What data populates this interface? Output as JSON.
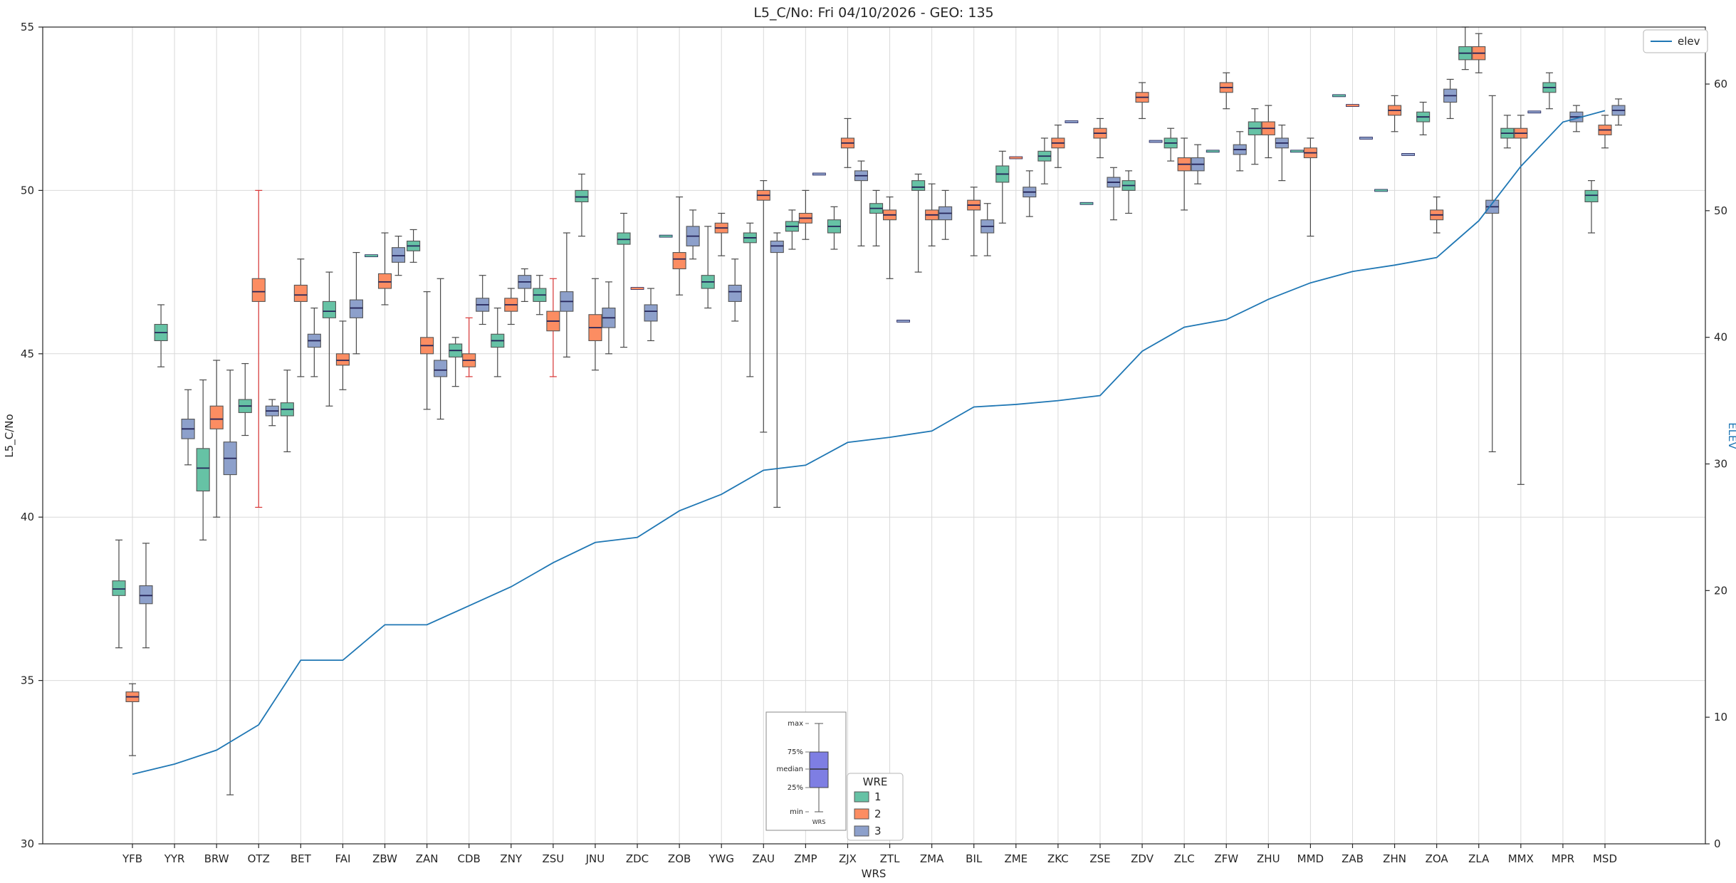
{
  "title": "L5_C/No: Fri 04/10/2026 - GEO: 135",
  "axes": {
    "x_label": "WRS",
    "y_left_label": "L5_C/No",
    "y_right_label": "ELEV",
    "y_left_ticks": [
      30,
      35,
      40,
      45,
      50,
      55
    ],
    "y_right_ticks": [
      0,
      10,
      20,
      30,
      40,
      50,
      60
    ],
    "y_left_range": [
      30,
      55
    ],
    "y_right_range": [
      0,
      64.5
    ],
    "grid": true
  },
  "legend_elev": {
    "label": "elev"
  },
  "legend_wre": {
    "title": "WRE",
    "items": [
      {
        "label": "1",
        "color": "#66c2a5"
      },
      {
        "label": "2",
        "color": "#fc8d62"
      },
      {
        "label": "3",
        "color": "#8da0cb"
      }
    ]
  },
  "inset": {
    "labels": [
      "max",
      "75%",
      "median",
      "25%",
      "min"
    ],
    "caption": "WRS",
    "box_color": "#7e7ee3"
  },
  "colors": {
    "elev_line": "#1f77b4",
    "box_edge": "#555555",
    "median": "#25255a",
    "whisker": "#4a4a4a",
    "red_whisker": "#d93636",
    "grid": "#d9d9d9",
    "spine": "#262626",
    "right_axis_text": "#1f77b4"
  },
  "chart_data": {
    "type": "boxplot+line",
    "title": "L5_C/No: Fri 04/10/2026 - GEO: 135",
    "xlabel": "WRS",
    "ylabel_left": "L5_C/No",
    "ylabel_right": "ELEV",
    "ylim_left": [
      30,
      55
    ],
    "ylim_right": [
      0,
      64.5
    ],
    "legend_position": "elev top-right, WRE bottom-center",
    "series_names": [
      "1",
      "2",
      "3"
    ],
    "categories": [
      "YFB",
      "YYR",
      "BRW",
      "OTZ",
      "BET",
      "FAI",
      "ZBW",
      "ZAN",
      "CDB",
      "ZNY",
      "ZSU",
      "JNU",
      "ZDC",
      "ZOB",
      "YWG",
      "ZAU",
      "ZMP",
      "ZJX",
      "ZTL",
      "ZMA",
      "BIL",
      "ZME",
      "ZKC",
      "ZSE",
      "ZDV",
      "ZLC",
      "ZFW",
      "ZHU",
      "MMD",
      "ZAB",
      "ZHN",
      "ZOA",
      "ZLA",
      "MMX",
      "MPR",
      "MSD"
    ],
    "elev": [
      5.5,
      6.3,
      7.4,
      9.4,
      14.5,
      14.5,
      17.3,
      17.3,
      18.8,
      20.3,
      22.2,
      23.8,
      24.2,
      26.3,
      27.6,
      29.5,
      29.9,
      31.7,
      32.1,
      32.6,
      34.5,
      34.7,
      35.0,
      35.4,
      38.9,
      40.8,
      41.4,
      43.0,
      44.3,
      45.2,
      45.7,
      46.3,
      49.2,
      53.5,
      57.0,
      57.9
    ],
    "boxes": [
      [
        {
          "s": 1,
          "lo": 36.0,
          "q1": 37.6,
          "med": 37.8,
          "q3": 38.05,
          "hi": 39.3
        },
        {
          "s": 2,
          "lo": 32.7,
          "q1": 34.35,
          "med": 34.5,
          "q3": 34.65,
          "hi": 34.9
        },
        {
          "s": 3,
          "lo": 36.0,
          "q1": 37.35,
          "med": 37.6,
          "q3": 37.9,
          "hi": 39.2
        }
      ],
      [
        {
          "s": 1,
          "lo": 44.6,
          "q1": 45.4,
          "med": 45.65,
          "q3": 45.9,
          "hi": 46.5
        },
        {
          "s": 3,
          "lo": 41.6,
          "q1": 42.4,
          "med": 42.7,
          "q3": 43.0,
          "hi": 43.9
        }
      ],
      [
        {
          "s": 1,
          "lo": 39.3,
          "q1": 40.8,
          "med": 41.5,
          "q3": 42.1,
          "hi": 44.2
        },
        {
          "s": 2,
          "lo": 40.0,
          "q1": 42.7,
          "med": 43.0,
          "q3": 43.4,
          "hi": 44.8
        },
        {
          "s": 3,
          "lo": 31.5,
          "q1": 41.3,
          "med": 41.8,
          "q3": 42.3,
          "hi": 44.5
        }
      ],
      [
        {
          "s": 1,
          "lo": 42.5,
          "q1": 43.2,
          "med": 43.4,
          "q3": 43.6,
          "hi": 44.7
        },
        {
          "s": 2,
          "lo": 40.3,
          "q1": 46.6,
          "med": 46.9,
          "q3": 47.3,
          "hi": 50.0,
          "wc": "red"
        },
        {
          "s": 3,
          "lo": 42.8,
          "q1": 43.1,
          "med": 43.25,
          "q3": 43.4,
          "hi": 43.6
        }
      ],
      [
        {
          "s": 1,
          "lo": 42.0,
          "q1": 43.1,
          "med": 43.3,
          "q3": 43.5,
          "hi": 44.5
        },
        {
          "s": 2,
          "lo": 44.3,
          "q1": 46.6,
          "med": 46.8,
          "q3": 47.1,
          "hi": 47.9
        },
        {
          "s": 3,
          "lo": 44.3,
          "q1": 45.2,
          "med": 45.4,
          "q3": 45.6,
          "hi": 46.4
        }
      ],
      [
        {
          "s": 1,
          "lo": 43.4,
          "q1": 46.1,
          "med": 46.3,
          "q3": 46.6,
          "hi": 47.5
        },
        {
          "s": 2,
          "lo": 43.9,
          "q1": 44.65,
          "med": 44.8,
          "q3": 45.0,
          "hi": 46.0
        },
        {
          "s": 3,
          "lo": 45.0,
          "q1": 46.1,
          "med": 46.4,
          "q3": 46.65,
          "hi": 48.1
        }
      ],
      [
        {
          "s": 1,
          "med": 48.0
        },
        {
          "s": 2,
          "lo": 46.5,
          "q1": 47.0,
          "med": 47.2,
          "q3": 47.45,
          "hi": 48.7
        },
        {
          "s": 3,
          "lo": 47.4,
          "q1": 47.8,
          "med": 48.0,
          "q3": 48.25,
          "hi": 48.6
        }
      ],
      [
        {
          "s": 1,
          "lo": 47.8,
          "q1": 48.15,
          "med": 48.3,
          "q3": 48.45,
          "hi": 48.8
        },
        {
          "s": 2,
          "lo": 43.3,
          "q1": 45.0,
          "med": 45.25,
          "q3": 45.5,
          "hi": 46.9
        },
        {
          "s": 3,
          "lo": 43.0,
          "q1": 44.3,
          "med": 44.5,
          "q3": 44.8,
          "hi": 47.3
        }
      ],
      [
        {
          "s": 1,
          "lo": 44.0,
          "q1": 44.9,
          "med": 45.1,
          "q3": 45.3,
          "hi": 45.5
        },
        {
          "s": 2,
          "lo": 44.3,
          "q1": 44.6,
          "med": 44.8,
          "q3": 45.0,
          "hi": 46.1,
          "wc": "red"
        },
        {
          "s": 3,
          "lo": 45.9,
          "q1": 46.3,
          "med": 46.5,
          "q3": 46.7,
          "hi": 47.4
        }
      ],
      [
        {
          "s": 1,
          "lo": 44.3,
          "q1": 45.2,
          "med": 45.4,
          "q3": 45.6,
          "hi": 46.4
        },
        {
          "s": 2,
          "lo": 45.9,
          "q1": 46.3,
          "med": 46.5,
          "q3": 46.7,
          "hi": 47.0
        },
        {
          "s": 3,
          "lo": 46.6,
          "q1": 47.0,
          "med": 47.2,
          "q3": 47.4,
          "hi": 47.6
        }
      ],
      [
        {
          "s": 1,
          "lo": 46.2,
          "q1": 46.6,
          "med": 46.8,
          "q3": 47.0,
          "hi": 47.4
        },
        {
          "s": 2,
          "lo": 44.3,
          "q1": 45.7,
          "med": 46.0,
          "q3": 46.3,
          "hi": 47.3,
          "wc": "red"
        },
        {
          "s": 3,
          "lo": 44.9,
          "q1": 46.3,
          "med": 46.6,
          "q3": 46.9,
          "hi": 48.7
        }
      ],
      [
        {
          "s": 1,
          "lo": 48.6,
          "q1": 49.65,
          "med": 49.8,
          "q3": 50.0,
          "hi": 50.5
        },
        {
          "s": 2,
          "lo": 44.5,
          "q1": 45.4,
          "med": 45.8,
          "q3": 46.2,
          "hi": 47.3
        },
        {
          "s": 3,
          "lo": 45.0,
          "q1": 45.8,
          "med": 46.1,
          "q3": 46.4,
          "hi": 47.2
        }
      ],
      [
        {
          "s": 1,
          "lo": 45.2,
          "q1": 48.35,
          "med": 48.5,
          "q3": 48.7,
          "hi": 49.3
        },
        {
          "s": 2,
          "med": 47.0
        },
        {
          "s": 3,
          "lo": 45.4,
          "q1": 46.0,
          "med": 46.3,
          "q3": 46.5,
          "hi": 47.0
        }
      ],
      [
        {
          "s": 1,
          "med": 48.6
        },
        {
          "s": 2,
          "lo": 46.8,
          "q1": 47.6,
          "med": 47.9,
          "q3": 48.1,
          "hi": 49.8
        },
        {
          "s": 3,
          "lo": 47.9,
          "q1": 48.3,
          "med": 48.6,
          "q3": 48.9,
          "hi": 49.4
        }
      ],
      [
        {
          "s": 1,
          "lo": 46.4,
          "q1": 47.0,
          "med": 47.2,
          "q3": 47.4,
          "hi": 48.9
        },
        {
          "s": 2,
          "lo": 48.0,
          "q1": 48.7,
          "med": 48.85,
          "q3": 49.0,
          "hi": 49.3
        },
        {
          "s": 3,
          "lo": 46.0,
          "q1": 46.6,
          "med": 46.9,
          "q3": 47.1,
          "hi": 47.9
        }
      ],
      [
        {
          "s": 1,
          "lo": 44.3,
          "q1": 48.4,
          "med": 48.55,
          "q3": 48.7,
          "hi": 49.0
        },
        {
          "s": 2,
          "lo": 42.6,
          "q1": 49.7,
          "med": 49.85,
          "q3": 50.0,
          "hi": 50.3
        },
        {
          "s": 3,
          "lo": 40.3,
          "q1": 48.1,
          "med": 48.3,
          "q3": 48.45,
          "hi": 48.7
        }
      ],
      [
        {
          "s": 1,
          "lo": 48.2,
          "q1": 48.75,
          "med": 48.9,
          "q3": 49.05,
          "hi": 49.4
        },
        {
          "s": 2,
          "lo": 48.5,
          "q1": 49.0,
          "med": 49.15,
          "q3": 49.3,
          "hi": 50.0
        },
        {
          "s": 3,
          "med": 50.5
        }
      ],
      [
        {
          "s": 1,
          "lo": 48.2,
          "q1": 48.7,
          "med": 48.9,
          "q3": 49.1,
          "hi": 49.5
        },
        {
          "s": 2,
          "lo": 50.7,
          "q1": 51.3,
          "med": 51.45,
          "q3": 51.6,
          "hi": 52.2
        },
        {
          "s": 3,
          "lo": 48.3,
          "q1": 50.3,
          "med": 50.45,
          "q3": 50.6,
          "hi": 50.9
        }
      ],
      [
        {
          "s": 1,
          "lo": 48.3,
          "q1": 49.3,
          "med": 49.45,
          "q3": 49.6,
          "hi": 50.0
        },
        {
          "s": 2,
          "lo": 47.3,
          "q1": 49.1,
          "med": 49.25,
          "q3": 49.4,
          "hi": 49.8
        },
        {
          "s": 3,
          "med": 46.0
        }
      ],
      [
        {
          "s": 1,
          "lo": 47.5,
          "q1": 50.0,
          "med": 50.1,
          "q3": 50.3,
          "hi": 50.5
        },
        {
          "s": 2,
          "lo": 48.3,
          "q1": 49.1,
          "med": 49.25,
          "q3": 49.4,
          "hi": 50.2
        },
        {
          "s": 3,
          "lo": 48.5,
          "q1": 49.1,
          "med": 49.3,
          "q3": 49.5,
          "hi": 50.0
        }
      ],
      [
        {
          "s": 2,
          "lo": 48.0,
          "q1": 49.4,
          "med": 49.55,
          "q3": 49.7,
          "hi": 50.1
        },
        {
          "s": 3,
          "lo": 48.0,
          "q1": 48.7,
          "med": 48.9,
          "q3": 49.1,
          "hi": 49.6
        }
      ],
      [
        {
          "s": 1,
          "lo": 49.0,
          "q1": 50.25,
          "med": 50.5,
          "q3": 50.75,
          "hi": 51.2
        },
        {
          "s": 2,
          "med": 51.0
        },
        {
          "s": 3,
          "lo": 49.2,
          "q1": 49.8,
          "med": 49.95,
          "q3": 50.1,
          "hi": 50.6
        }
      ],
      [
        {
          "s": 1,
          "lo": 50.2,
          "q1": 50.9,
          "med": 51.05,
          "q3": 51.2,
          "hi": 51.6
        },
        {
          "s": 2,
          "lo": 50.7,
          "q1": 51.3,
          "med": 51.45,
          "q3": 51.6,
          "hi": 52.0
        },
        {
          "s": 3,
          "med": 52.1
        }
      ],
      [
        {
          "s": 1,
          "med": 49.6
        },
        {
          "s": 2,
          "lo": 51.0,
          "q1": 51.6,
          "med": 51.75,
          "q3": 51.9,
          "hi": 52.2
        },
        {
          "s": 3,
          "lo": 49.1,
          "q1": 50.1,
          "med": 50.25,
          "q3": 50.4,
          "hi": 50.7
        }
      ],
      [
        {
          "s": 1,
          "lo": 49.3,
          "q1": 50.0,
          "med": 50.15,
          "q3": 50.3,
          "hi": 50.6
        },
        {
          "s": 2,
          "lo": 52.2,
          "q1": 52.7,
          "med": 52.85,
          "q3": 53.0,
          "hi": 53.3
        },
        {
          "s": 3,
          "med": 51.5
        }
      ],
      [
        {
          "s": 1,
          "lo": 50.9,
          "q1": 51.3,
          "med": 51.45,
          "q3": 51.6,
          "hi": 51.9
        },
        {
          "s": 2,
          "lo": 49.4,
          "q1": 50.6,
          "med": 50.8,
          "q3": 51.0,
          "hi": 51.6
        },
        {
          "s": 3,
          "lo": 50.2,
          "q1": 50.6,
          "med": 50.8,
          "q3": 51.0,
          "hi": 51.4
        }
      ],
      [
        {
          "s": 1,
          "med": 51.2
        },
        {
          "s": 2,
          "lo": 52.5,
          "q1": 53.0,
          "med": 53.15,
          "q3": 53.3,
          "hi": 53.6
        },
        {
          "s": 3,
          "lo": 50.6,
          "q1": 51.1,
          "med": 51.25,
          "q3": 51.4,
          "hi": 51.8
        }
      ],
      [
        {
          "s": 1,
          "lo": 50.8,
          "q1": 51.7,
          "med": 51.9,
          "q3": 52.1,
          "hi": 52.5
        },
        {
          "s": 2,
          "lo": 51.0,
          "q1": 51.7,
          "med": 51.9,
          "q3": 52.1,
          "hi": 52.6
        },
        {
          "s": 3,
          "lo": 50.3,
          "q1": 51.3,
          "med": 51.45,
          "q3": 51.6,
          "hi": 52.0
        }
      ],
      [
        {
          "s": 1,
          "med": 51.2
        },
        {
          "s": 2,
          "lo": 48.6,
          "q1": 51.0,
          "med": 51.15,
          "q3": 51.3,
          "hi": 51.6
        }
      ],
      [
        {
          "s": 1,
          "med": 52.9
        },
        {
          "s": 2,
          "med": 52.6
        },
        {
          "s": 3,
          "med": 51.6
        }
      ],
      [
        {
          "s": 1,
          "med": 50.0
        },
        {
          "s": 2,
          "lo": 51.8,
          "q1": 52.3,
          "med": 52.45,
          "q3": 52.6,
          "hi": 52.9
        },
        {
          "s": 3,
          "med": 51.1
        }
      ],
      [
        {
          "s": 1,
          "lo": 51.7,
          "q1": 52.1,
          "med": 52.25,
          "q3": 52.4,
          "hi": 52.7
        },
        {
          "s": 2,
          "lo": 48.7,
          "q1": 49.1,
          "med": 49.25,
          "q3": 49.4,
          "hi": 49.8
        },
        {
          "s": 3,
          "lo": 52.2,
          "q1": 52.7,
          "med": 52.9,
          "q3": 53.1,
          "hi": 53.4
        }
      ],
      [
        {
          "s": 1,
          "lo": 53.7,
          "q1": 54.0,
          "med": 54.2,
          "q3": 54.4,
          "hi": 55.0
        },
        {
          "s": 2,
          "lo": 53.6,
          "q1": 54.0,
          "med": 54.2,
          "q3": 54.4,
          "hi": 54.8
        },
        {
          "s": 3,
          "lo": 42.0,
          "q1": 49.3,
          "med": 49.5,
          "q3": 49.7,
          "hi": 52.9
        }
      ],
      [
        {
          "s": 1,
          "lo": 51.3,
          "q1": 51.6,
          "med": 51.75,
          "q3": 51.9,
          "hi": 52.3
        },
        {
          "s": 2,
          "lo": 41.0,
          "q1": 51.6,
          "med": 51.75,
          "q3": 51.9,
          "hi": 52.3
        },
        {
          "s": 3,
          "med": 52.4
        }
      ],
      [
        {
          "s": 1,
          "lo": 52.5,
          "q1": 53.0,
          "med": 53.15,
          "q3": 53.3,
          "hi": 53.6
        },
        {
          "s": 3,
          "lo": 51.8,
          "q1": 52.1,
          "med": 52.25,
          "q3": 52.4,
          "hi": 52.6
        }
      ],
      [
        {
          "s": 1,
          "lo": 48.7,
          "q1": 49.65,
          "med": 49.85,
          "q3": 50.0,
          "hi": 50.3
        },
        {
          "s": 2,
          "lo": 51.3,
          "q1": 51.7,
          "med": 51.85,
          "q3": 52.0,
          "hi": 52.3
        },
        {
          "s": 3,
          "lo": 52.0,
          "q1": 52.3,
          "med": 52.45,
          "q3": 52.6,
          "hi": 52.8
        }
      ]
    ]
  }
}
